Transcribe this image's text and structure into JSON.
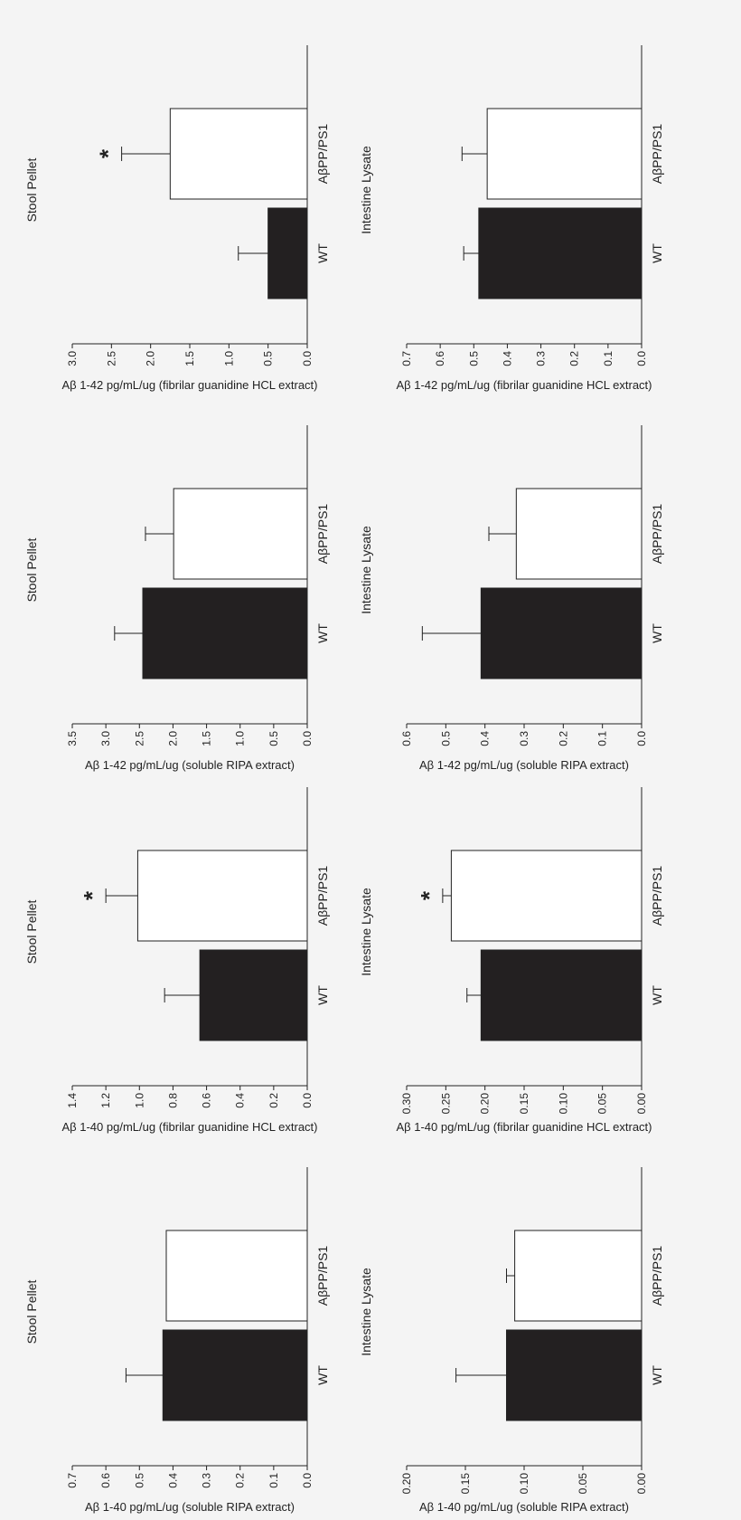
{
  "colors": {
    "background": "#f4f4f4",
    "wt_fill": "#232021",
    "app_fill": "#ffffff",
    "stroke": "#222222"
  },
  "chart_data": [
    {
      "type": "bar",
      "title": "Stool Pellet",
      "ylabel": "Aβ 1-40 pg/mL/ug (soluble RIPA extract)",
      "categories": [
        "WT",
        "AβPP/PS1"
      ],
      "values": [
        0.43,
        0.42
      ],
      "errors": [
        0.11,
        0.0
      ],
      "ylim": [
        0,
        0.7
      ],
      "yticks": [
        "0.0",
        "0.1",
        "0.2",
        "0.3",
        "0.4",
        "0.5",
        "0.6",
        "0.7"
      ],
      "significance": [
        "",
        ""
      ]
    },
    {
      "type": "bar",
      "title": "Intestine Lysate",
      "ylabel": "Aβ 1-40 pg/mL/ug (soluble RIPA extract)",
      "categories": [
        "WT",
        "AβPP/PS1"
      ],
      "values": [
        0.115,
        0.108
      ],
      "errors": [
        0.043,
        0.007
      ],
      "ylim": [
        0,
        0.2
      ],
      "yticks": [
        "0.00",
        "0.05",
        "0.10",
        "0.15",
        "0.20"
      ],
      "significance": [
        "",
        ""
      ]
    },
    {
      "type": "bar",
      "title": "Stool Pellet",
      "ylabel": "Aβ 1-40 pg/mL/ug (fibrilar guanidine HCL extract)",
      "categories": [
        "WT",
        "AβPP/PS1"
      ],
      "values": [
        0.64,
        1.01
      ],
      "errors": [
        0.21,
        0.19
      ],
      "ylim": [
        0,
        1.4
      ],
      "yticks": [
        "0.0",
        "0.2",
        "0.4",
        "0.6",
        "0.8",
        "1.0",
        "1.2",
        "1.4"
      ],
      "significance": [
        "",
        "*"
      ]
    },
    {
      "type": "bar",
      "title": "Intestine Lysate",
      "ylabel": "Aβ 1-40 pg/mL/ug (fibrilar guanidine HCL extract)",
      "categories": [
        "WT",
        "AβPP/PS1"
      ],
      "values": [
        0.205,
        0.243
      ],
      "errors": [
        0.018,
        0.011
      ],
      "ylim": [
        0,
        0.3
      ],
      "yticks": [
        "0.00",
        "0.05",
        "0.10",
        "0.15",
        "0.20",
        "0.25",
        "0.30"
      ],
      "significance": [
        "",
        "*"
      ]
    },
    {
      "type": "bar",
      "title": "Stool Pellet",
      "ylabel": "Aβ 1-42 pg/mL/ug (soluble RIPA extract)",
      "categories": [
        "WT",
        "AβPP/PS1"
      ],
      "values": [
        2.45,
        1.99
      ],
      "errors": [
        0.42,
        0.42
      ],
      "ylim": [
        0,
        3.5
      ],
      "yticks": [
        "0.0",
        "0.5",
        "1.0",
        "1.5",
        "2.0",
        "2.5",
        "3.0",
        "3.5"
      ],
      "significance": [
        "",
        ""
      ]
    },
    {
      "type": "bar",
      "title": "Intestine Lysate",
      "ylabel": "Aβ 1-42 pg/mL/ug (soluble RIPA extract)",
      "categories": [
        "WT",
        "AβPP/PS1"
      ],
      "values": [
        0.41,
        0.32
      ],
      "errors": [
        0.15,
        0.07
      ],
      "ylim": [
        0,
        0.6
      ],
      "yticks": [
        "0.0",
        "0.1",
        "0.2",
        "0.3",
        "0.4",
        "0.5",
        "0.6"
      ],
      "significance": [
        "",
        ""
      ]
    },
    {
      "type": "bar",
      "title": "Stool Pellet",
      "ylabel": "Aβ 1-42 pg/mL/ug (fibrilar guanidine HCL extract)",
      "categories": [
        "WT",
        "AβPP/PS1"
      ],
      "values": [
        0.5,
        1.75
      ],
      "errors": [
        0.38,
        0.62
      ],
      "ylim": [
        0,
        3.0
      ],
      "yticks": [
        "0.0",
        "0.5",
        "1.0",
        "1.5",
        "2.0",
        "2.5",
        "3.0"
      ],
      "significance": [
        "",
        "*"
      ]
    },
    {
      "type": "bar",
      "title": "Intestine Lysate",
      "ylabel": "Aβ 1-42 pg/mL/ug (fibrilar guanidine HCL extract)",
      "categories": [
        "WT",
        "AβPP/PS1"
      ],
      "values": [
        0.485,
        0.46
      ],
      "errors": [
        0.045,
        0.075
      ],
      "ylim": [
        0,
        0.7
      ],
      "yticks": [
        "0.0",
        "0.1",
        "0.2",
        "0.3",
        "0.4",
        "0.5",
        "0.6",
        "0.7"
      ],
      "significance": [
        "",
        ""
      ]
    }
  ]
}
